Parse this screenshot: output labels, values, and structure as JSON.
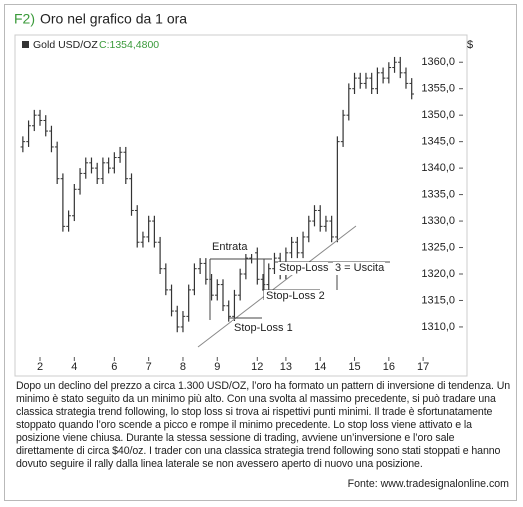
{
  "title_prefix": "F2)",
  "title": "Oro nel grafico da 1 ora",
  "chart_data": {
    "type": "ohlc",
    "legend": {
      "name": "Gold USD/OZ",
      "last": "C:1354,4800"
    },
    "y_unit": "$",
    "color": "#333333",
    "open": [
      1344,
      1345,
      1348,
      1350,
      1349,
      1347,
      1344,
      1338,
      1329,
      1331,
      1336,
      1339,
      1341,
      1340,
      1338,
      1341,
      1340,
      1342,
      1343,
      1338,
      1332,
      1326,
      1327,
      1330,
      1326,
      1321,
      1317,
      1313,
      1310,
      1312,
      1317,
      1321,
      1322,
      1319,
      1316,
      1318,
      1314,
      1312,
      1316,
      1320,
      1323,
      1324,
      1319,
      1318,
      1321,
      1323,
      1320,
      1324,
      1326,
      1324,
      1327,
      1330,
      1332,
      1329,
      1330,
      1327,
      1345,
      1350,
      1355,
      1357,
      1356,
      1357,
      1355,
      1358,
      1357,
      1359,
      1360,
      1358,
      1356
    ],
    "high": [
      1346,
      1349,
      1351,
      1351,
      1350,
      1348,
      1345,
      1339,
      1332,
      1337,
      1340,
      1342,
      1342,
      1341,
      1342,
      1342,
      1343,
      1344,
      1344,
      1339,
      1333,
      1328,
      1331,
      1331,
      1327,
      1322,
      1318,
      1314,
      1313,
      1318,
      1322,
      1323,
      1323,
      1320,
      1319,
      1319,
      1315,
      1317,
      1321,
      1324,
      1325,
      1325,
      1320,
      1322,
      1324,
      1324,
      1325,
      1327,
      1327,
      1328,
      1331,
      1333,
      1333,
      1331,
      1331,
      1346,
      1351,
      1356,
      1358,
      1358,
      1358,
      1358,
      1359,
      1359,
      1360,
      1361,
      1361,
      1359,
      1357
    ],
    "low": [
      1343,
      1344,
      1347,
      1348,
      1346,
      1343,
      1337,
      1328,
      1328,
      1330,
      1335,
      1338,
      1339,
      1337,
      1337,
      1339,
      1339,
      1341,
      1337,
      1331,
      1325,
      1325,
      1326,
      1325,
      1320,
      1316,
      1312,
      1309,
      1309,
      1311,
      1316,
      1320,
      1318,
      1315,
      1315,
      1313,
      1311,
      1311,
      1315,
      1319,
      1322,
      1318,
      1317,
      1317,
      1320,
      1319,
      1319,
      1323,
      1323,
      1323,
      1326,
      1329,
      1328,
      1328,
      1326,
      1326,
      1344,
      1349,
      1354,
      1355,
      1355,
      1354,
      1354,
      1356,
      1356,
      1358,
      1357,
      1355,
      1353
    ],
    "close": [
      1345,
      1348,
      1350,
      1349,
      1347,
      1344,
      1338,
      1329,
      1331,
      1336,
      1339,
      1341,
      1340,
      1338,
      1341,
      1340,
      1342,
      1343,
      1338,
      1332,
      1326,
      1327,
      1330,
      1326,
      1321,
      1317,
      1313,
      1310,
      1312,
      1317,
      1321,
      1322,
      1319,
      1316,
      1318,
      1314,
      1312,
      1316,
      1320,
      1323,
      1324,
      1319,
      1318,
      1321,
      1323,
      1320,
      1324,
      1326,
      1324,
      1327,
      1330,
      1332,
      1329,
      1330,
      1327,
      1345,
      1350,
      1355,
      1357,
      1356,
      1357,
      1355,
      1358,
      1357,
      1359,
      1360,
      1358,
      1356,
      1354
    ],
    "xlim": [
      -0.5,
      71.2
    ],
    "xticks": [
      {
        "value": 3,
        "label": "2"
      },
      {
        "value": 9,
        "label": "4"
      },
      {
        "value": 16,
        "label": "6"
      },
      {
        "value": 22,
        "label": "7"
      },
      {
        "value": 28,
        "label": "8"
      },
      {
        "value": 34,
        "label": "9"
      },
      {
        "value": 41,
        "label": "12"
      },
      {
        "value": 46,
        "label": "13"
      },
      {
        "value": 52,
        "label": "14"
      },
      {
        "value": 58,
        "label": "15"
      },
      {
        "value": 64,
        "label": "16"
      },
      {
        "value": 70,
        "label": "17"
      }
    ],
    "ylim": [
      1304.7,
      1364.2
    ],
    "yticks": [
      {
        "value": 1310,
        "label": "1310,0"
      },
      {
        "value": 1315,
        "label": "1315,0"
      },
      {
        "value": 1320,
        "label": "1320,0"
      },
      {
        "value": 1325,
        "label": "1325,0"
      },
      {
        "value": 1330,
        "label": "1330,0"
      },
      {
        "value": 1335,
        "label": "1335,0"
      },
      {
        "value": 1340,
        "label": "1340,0"
      },
      {
        "value": 1345,
        "label": "1345,0"
      },
      {
        "value": 1350,
        "label": "1350,0"
      },
      {
        "value": 1355,
        "label": "1355,0"
      },
      {
        "value": 1360,
        "label": "1360,0"
      }
    ],
    "annotations": [
      "Entrata",
      "Stop-Loss",
      "3 = Uscita",
      "Stop-Loss 2",
      "Stop-Loss 1"
    ]
  },
  "caption": "Dopo un declino del prezzo a circa 1.300 USD/OZ, l’oro ha formato un pattern di inversione di tendenza. Un minimo è stato seguito da un minimo più alto. Con una svolta al massimo precedente, si può tradare una classica strategia trend following, lo stop loss si trova ai rispettivi punti minimi. Il trade è sfortunatamente stoppato quando l’oro scende a picco e rompe il minimo precedente. Lo stop loss viene attivato e la posizione viene chiusa. Durante la stessa sessione di trading, avviene un’inversione e l’oro sale direttamente di circa $40/oz. I trader con una classica strategia trend following sono stati stoppati e hanno dovuto seguire il rally dalla linea laterale se non avessero aperto di nuovo una posizione.",
  "source": "Fonte: www.tradesignalonline.com"
}
